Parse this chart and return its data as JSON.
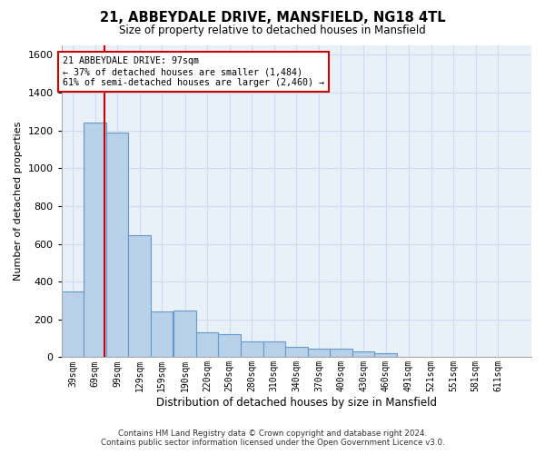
{
  "title": "21, ABBEYDALE DRIVE, MANSFIELD, NG18 4TL",
  "subtitle": "Size of property relative to detached houses in Mansfield",
  "xlabel": "Distribution of detached houses by size in Mansfield",
  "ylabel": "Number of detached properties",
  "footer_line1": "Contains HM Land Registry data © Crown copyright and database right 2024.",
  "footer_line2": "Contains public sector information licensed under the Open Government Licence v3.0.",
  "annotation_title": "21 ABBEYDALE DRIVE: 97sqm",
  "annotation_line1": "← 37% of detached houses are smaller (1,484)",
  "annotation_line2": "61% of semi-detached houses are larger (2,460) →",
  "property_size": 97,
  "bar_left_edges": [
    39,
    69,
    99,
    129,
    159,
    190,
    220,
    250,
    280,
    310,
    340,
    370,
    400,
    430,
    460,
    491,
    521,
    551,
    581,
    611
  ],
  "bar_widths": [
    30,
    30,
    30,
    30,
    30,
    30,
    30,
    30,
    30,
    30,
    30,
    30,
    30,
    30,
    30,
    30,
    30,
    30,
    30,
    30
  ],
  "bar_heights": [
    350,
    1240,
    1190,
    645,
    240,
    245,
    130,
    120,
    85,
    85,
    55,
    45,
    45,
    30,
    20,
    0,
    0,
    0,
    0,
    0
  ],
  "bar_color": "#b8d0e8",
  "bar_edge_color": "#6699cc",
  "redline_color": "#cc0000",
  "annotation_box_edgecolor": "#cc0000",
  "grid_color": "#ccdded",
  "bg_color": "#e8f0f8",
  "ylim": [
    0,
    1650
  ],
  "yticks": [
    0,
    200,
    400,
    600,
    800,
    1000,
    1200,
    1400,
    1600
  ],
  "xlim_left": 39,
  "xlim_right": 671
}
